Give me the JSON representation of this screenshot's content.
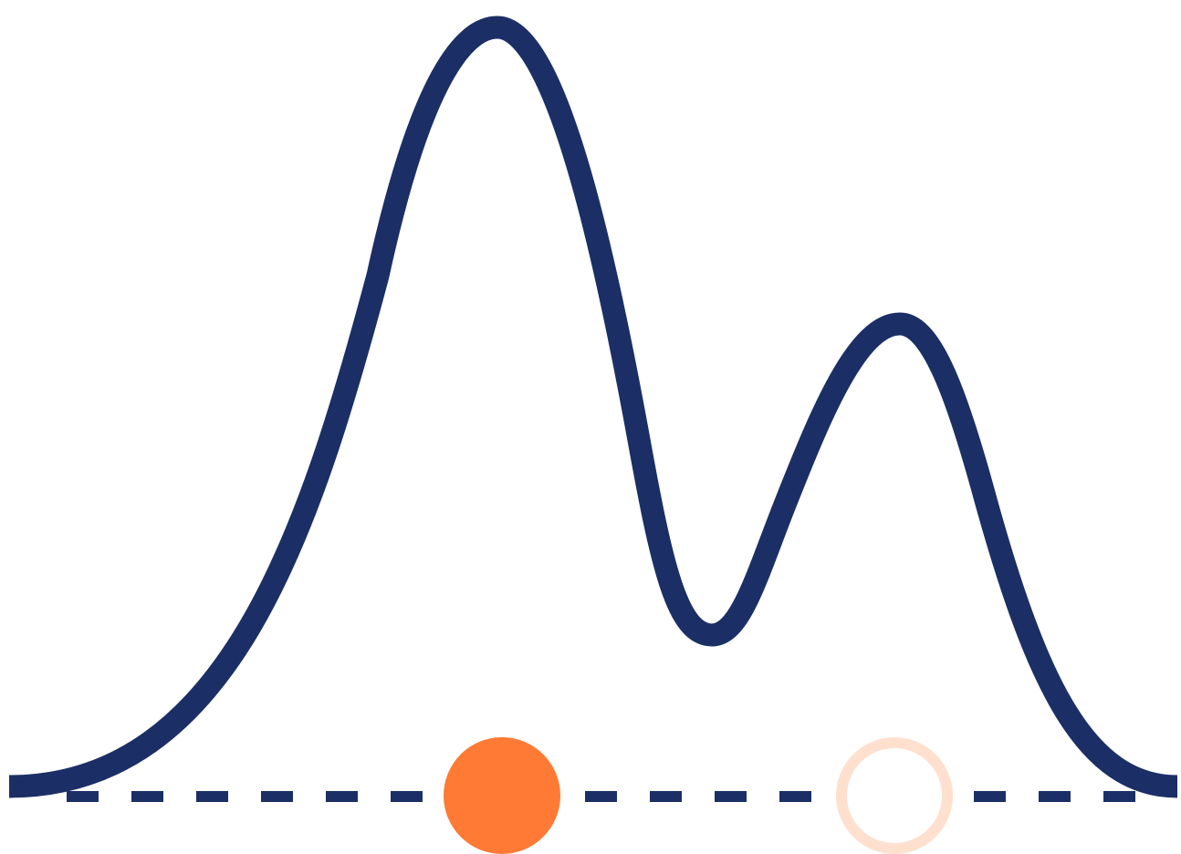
{
  "colors": {
    "curve": "#1b2f66",
    "baseline": "#1b2f66",
    "selected_marker": "#ff7a35",
    "unselected_marker": "#ffe0cf",
    "background": "#ffffff"
  },
  "icons": {
    "curve": "bimodal-curve-icon",
    "selected_marker": "filled-circle-icon",
    "unselected_marker": "hollow-circle-icon"
  },
  "markers": [
    {
      "name": "selected-marker",
      "state": "filled"
    },
    {
      "name": "unselected-marker",
      "state": "hollow"
    }
  ]
}
